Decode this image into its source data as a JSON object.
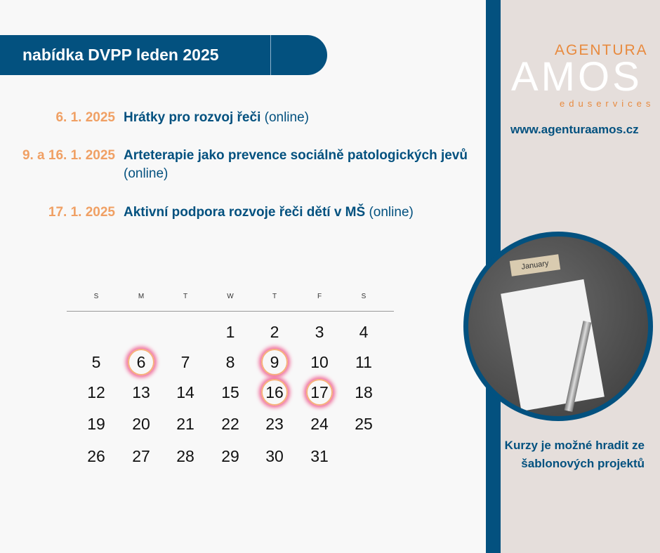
{
  "header": {
    "title": "nabídka DVPP leden 2025"
  },
  "events": [
    {
      "date": "6. 1. 2025",
      "title": "Hrátky pro rozvoj řeči",
      "mode": "(online)"
    },
    {
      "date": "9. a 16. 1. 2025",
      "title": "Arteterapie jako prevence sociálně patologických jevů",
      "mode": "(online)"
    },
    {
      "date": "17. 1. 2025",
      "title": "Aktivní podpora rozvoje řeči dětí v MŠ",
      "mode": "(online)"
    }
  ],
  "calendar": {
    "weekdays": [
      "S",
      "M",
      "T",
      "W",
      "T",
      "F",
      "S"
    ],
    "first_weekday_index": 3,
    "days": 31,
    "highlighted": [
      6,
      9,
      16,
      17
    ]
  },
  "sidebar": {
    "logo": {
      "top": "AGENTURA",
      "main": "AMOS",
      "sub": "eduservices"
    },
    "url": "www.agenturaamos.cz",
    "photo_label": "January",
    "note": "Kurzy je možné hradit ze šablonových projektů"
  },
  "colors": {
    "primary": "#03517f",
    "accent": "#f0a064",
    "panel": "#e5dedb"
  }
}
